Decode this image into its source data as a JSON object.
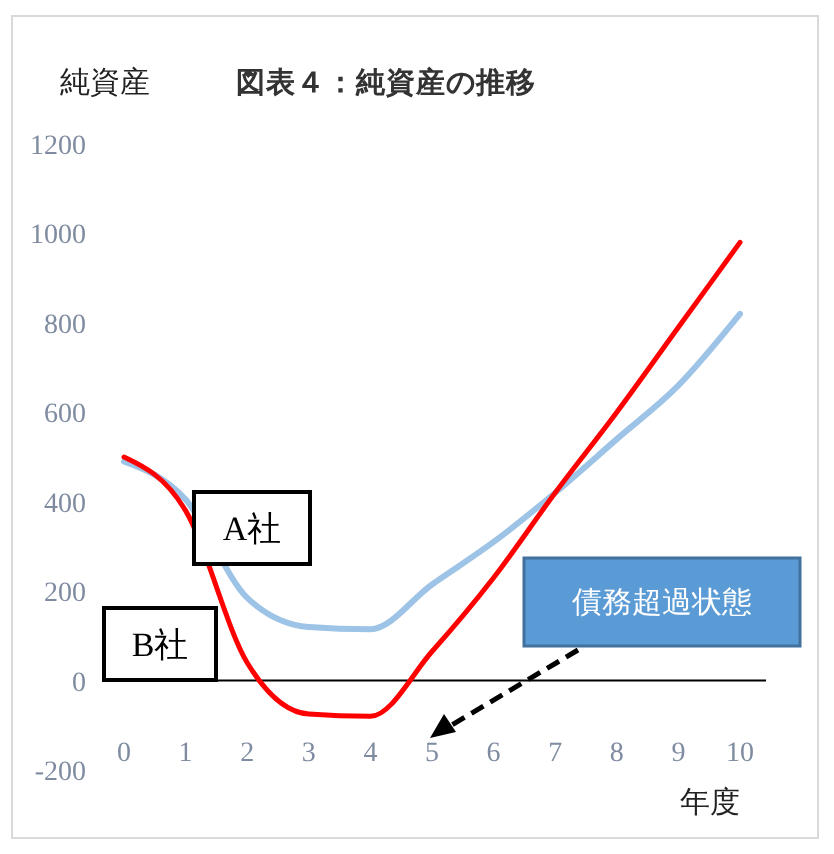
{
  "chart_data": {
    "type": "line",
    "title": "図表４：純資産の推移",
    "ylabel": "純資産",
    "xlabel": "年度",
    "categories": [
      "0",
      "1",
      "2",
      "3",
      "4",
      "5",
      "6",
      "7",
      "8",
      "9",
      "10"
    ],
    "series": [
      {
        "name": "A社",
        "color": "#9dc3e6",
        "values": [
          490,
          405,
          185,
          120,
          115,
          215,
          310,
          420,
          540,
          660,
          820
        ]
      },
      {
        "name": "B社",
        "color": "#ff0000",
        "values": [
          500,
          380,
          40,
          -75,
          -80,
          65,
          230,
          420,
          600,
          790,
          980
        ]
      }
    ],
    "ylim": [
      -200,
      1200
    ],
    "yticks": [
      -200,
      0,
      200,
      400,
      600,
      800,
      1000,
      1200
    ],
    "grid": false,
    "annotations": [
      "債務超過状態"
    ]
  }
}
